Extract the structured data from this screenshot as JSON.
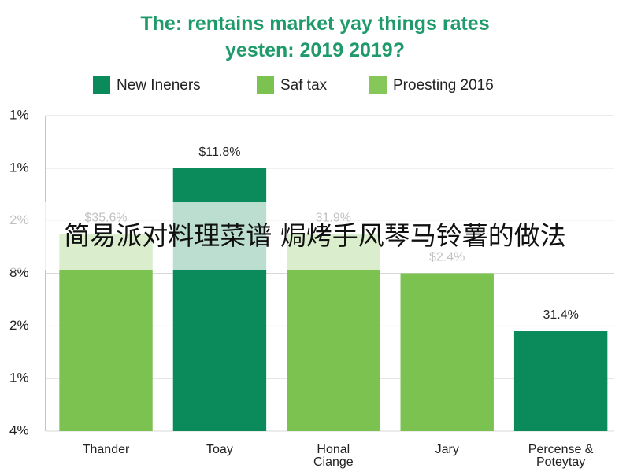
{
  "chart_data": {
    "type": "bar",
    "title_lines": [
      "The: rentains market yay things rates",
      "yesten: 2019 2019?"
    ],
    "legend": [
      {
        "name": "New Ineners",
        "color": "#0b8a5c"
      },
      {
        "name": "Saf tax",
        "color": "#7cc250"
      },
      {
        "name": "Proesting 2016",
        "color": "#86c75a"
      }
    ],
    "categories": [
      "Thander",
      "Toay",
      "Honal Ciange",
      "Jary",
      "Percense & Poteytay"
    ],
    "values": [
      3.75,
      5.0,
      3.75,
      3.0,
      1.9
    ],
    "colors": [
      "#7cc250",
      "#0b8a5c",
      "#7cc250",
      "#7cc250",
      "#0b8a5c"
    ],
    "bar_labels": [
      "$35.6%",
      "$11.8%",
      "31.9%",
      "$2.4%",
      "31.4%"
    ],
    "ylim": [
      0,
      6
    ],
    "yticks": [
      {
        "value": 0,
        "label": "4%"
      },
      {
        "value": 1,
        "label": "1%"
      },
      {
        "value": 2,
        "label": "2%"
      },
      {
        "value": 3,
        "label": "8%"
      },
      {
        "value": 4,
        "label": "2%"
      },
      {
        "value": 5,
        "label": "1%"
      },
      {
        "value": 6,
        "label": "1%"
      }
    ],
    "grid": true
  },
  "overlay_text": "简易派对料理菜谱 焗烤手风琴马铃薯的做法"
}
